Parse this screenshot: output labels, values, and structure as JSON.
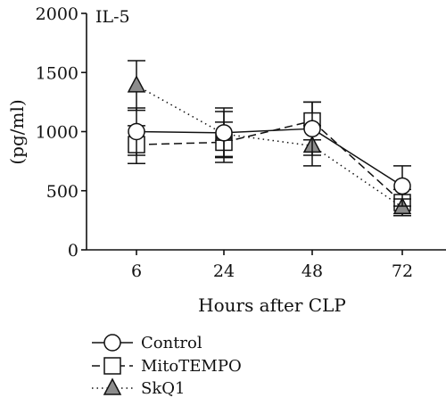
{
  "chart_data": {
    "type": "line",
    "panel_label": "IL-5",
    "xlabel": "Hours after CLP",
    "ylabel": "(pg/ml)",
    "categories": [
      "6",
      "24",
      "48",
      "72"
    ],
    "ylim": [
      0,
      2000
    ],
    "yticks": [
      0,
      500,
      1000,
      1500,
      2000
    ],
    "grid": false,
    "legend_position": "bottom-left",
    "series": [
      {
        "name": "Control",
        "marker": "circle",
        "line_style": "solid",
        "marker_fill": "#ffffff",
        "values": [
          1000,
          990,
          1025,
          540
        ],
        "error": [
          200,
          210,
          225,
          170
        ]
      },
      {
        "name": "MitoTEMPO",
        "marker": "square",
        "line_style": "dashed",
        "marker_fill": "#ffffff",
        "values": [
          890,
          910,
          1090,
          400
        ],
        "error": [
          160,
          170,
          160,
          110
        ]
      },
      {
        "name": "SkQ1",
        "marker": "triangle",
        "line_style": "dotted",
        "marker_fill": "#8c8c8c",
        "values": [
          1390,
          980,
          880,
          360
        ],
        "error": [
          210,
          190,
          170,
          70
        ]
      }
    ]
  }
}
